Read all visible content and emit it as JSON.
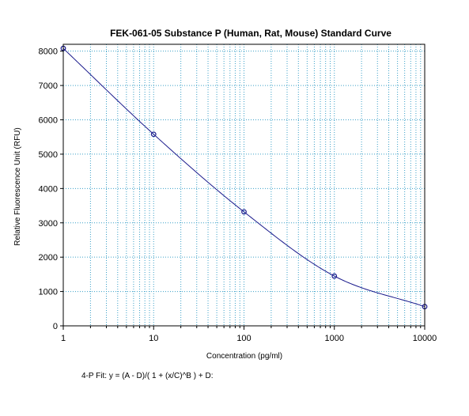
{
  "chart_data": {
    "type": "scatter",
    "title": "FEK-061-05 Substance P (Human, Rat, Mouse) Standard Curve",
    "xlabel": "Concentration (pg/ml)",
    "ylabel": "Relative Fluorescence Unit (RFU)",
    "x_scale": "log",
    "xlim": [
      1,
      10000
    ],
    "ylim": [
      0,
      8200
    ],
    "x_ticks": [
      "1",
      "10",
      "100",
      "1000",
      "10000"
    ],
    "y_ticks": [
      "0",
      "1000",
      "2000",
      "3000",
      "4000",
      "5000",
      "6000",
      "7000",
      "8000"
    ],
    "grid": true,
    "series": [
      {
        "values": [
          {
            "x": 1,
            "y": 8080
          },
          {
            "x": 10,
            "y": 5580
          },
          {
            "x": 100,
            "y": 3320
          },
          {
            "x": 1000,
            "y": 1450
          },
          {
            "x": 10000,
            "y": 560
          }
        ]
      }
    ],
    "fit_text": "4-P Fit:  y = (A - D)/( 1 + (x/C)^B ) + D:",
    "colors": {
      "points": "#1a1a8c",
      "curve": "#1a1a8c",
      "grid": "#3aa0c8",
      "axes": "#000000"
    }
  }
}
